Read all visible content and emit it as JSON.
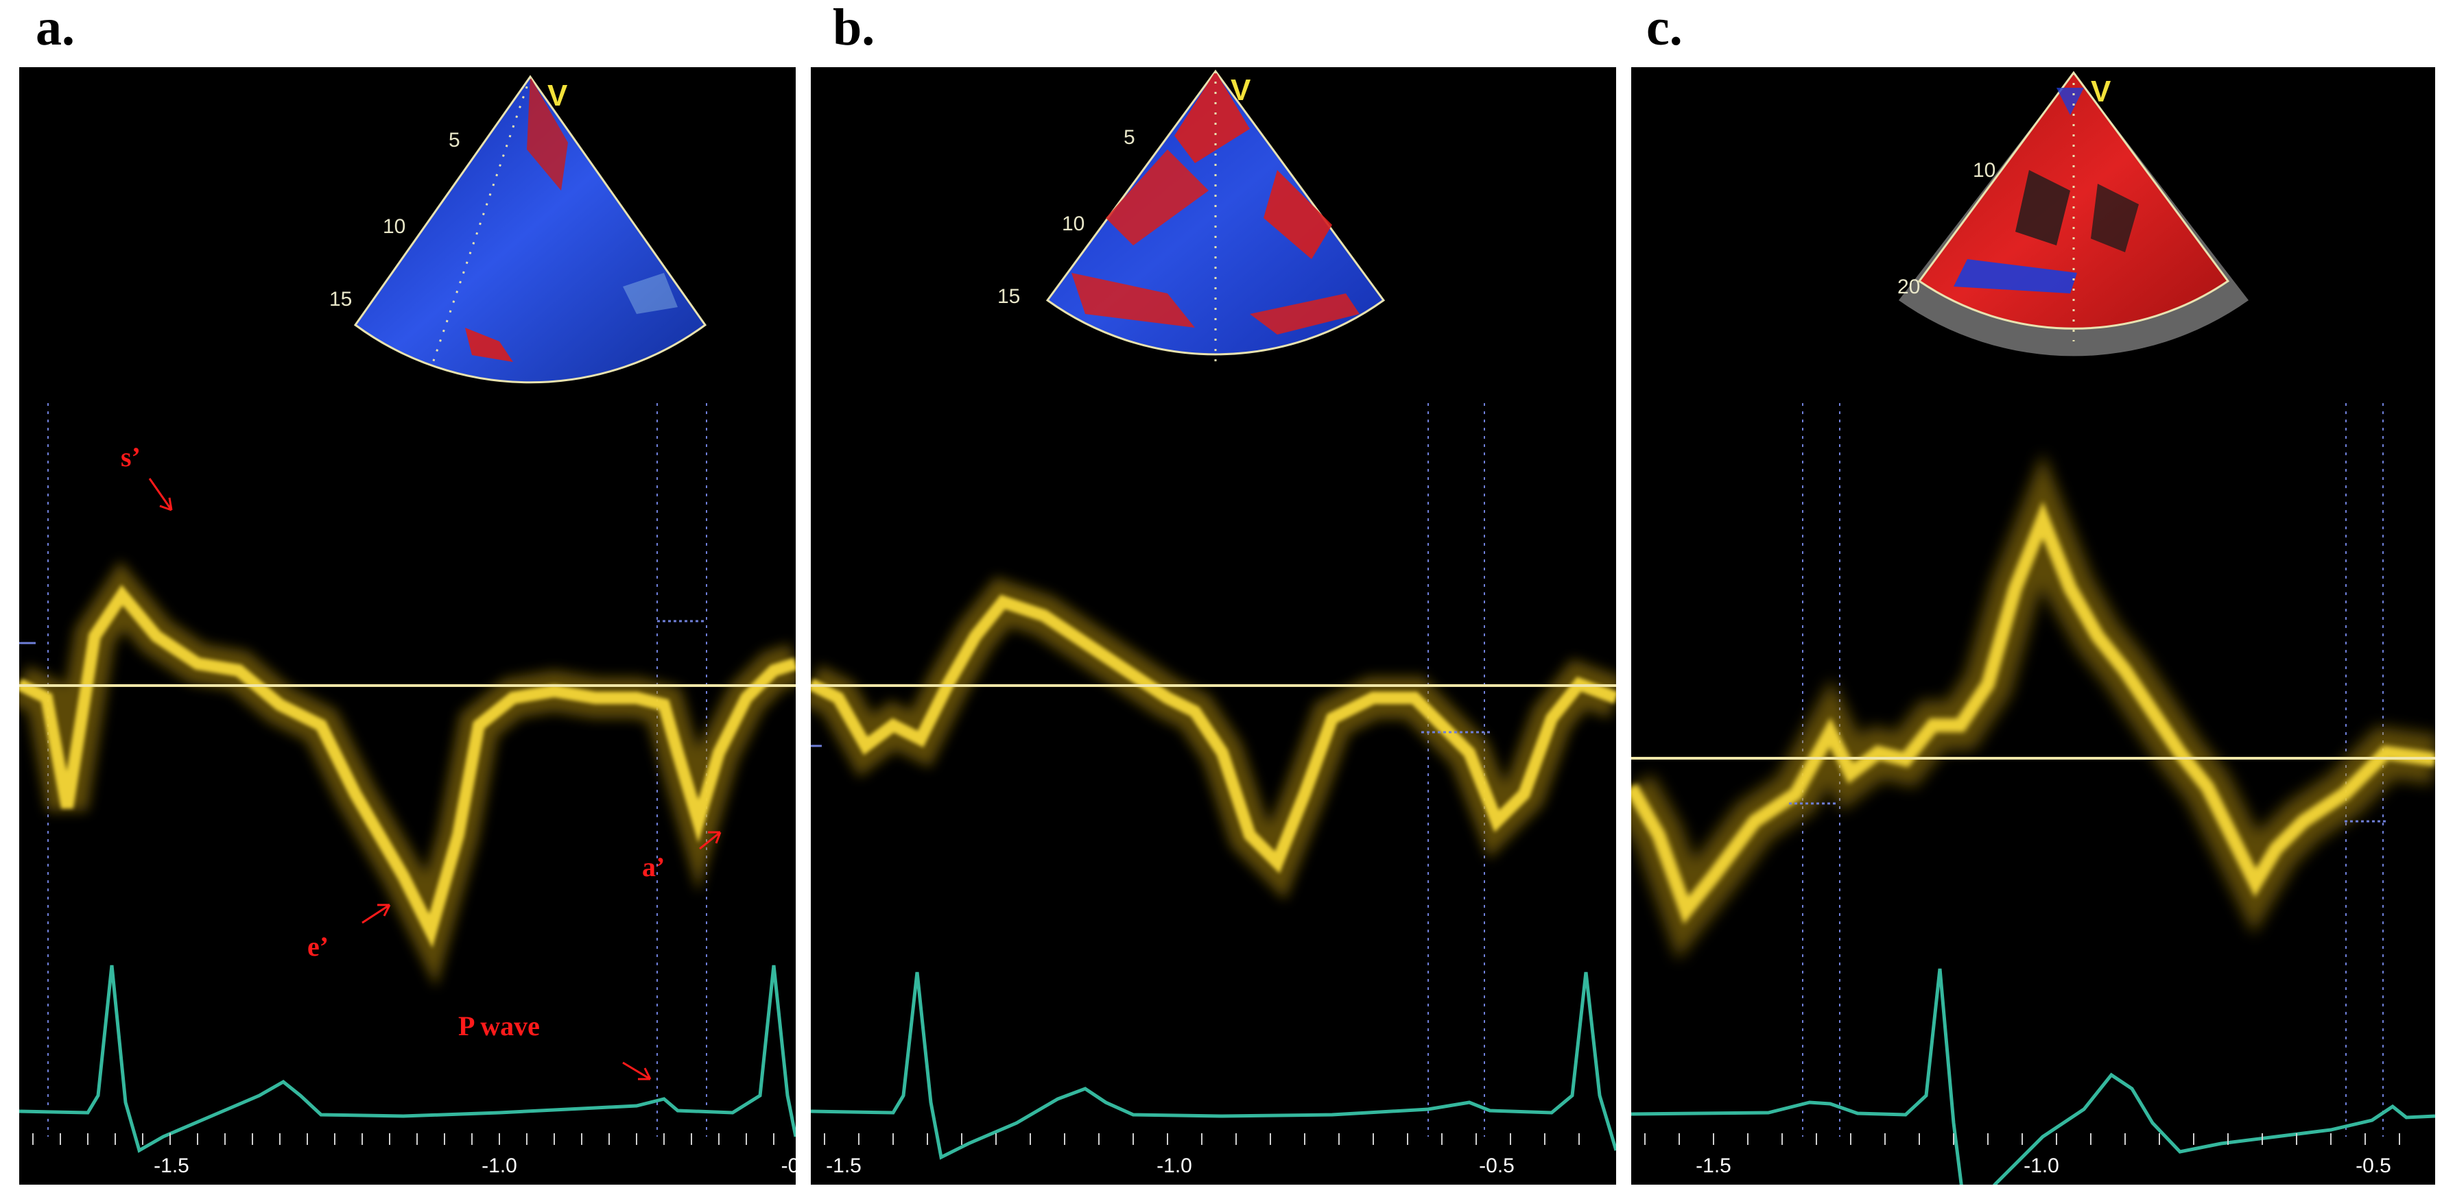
{
  "figure": {
    "panels": [
      {
        "id": "a",
        "label": "a.",
        "sector_v": "V",
        "depth_marks": [
          "5",
          "10",
          "15"
        ],
        "time_ticks": [
          "-1.5",
          "-1.0",
          "-0"
        ],
        "annotations": [
          "s’",
          "e’",
          "a’",
          "P wave"
        ]
      },
      {
        "id": "b",
        "label": "b.",
        "sector_v": "V",
        "depth_marks": [
          "5",
          "10",
          "15"
        ],
        "time_ticks": [
          "-1.5",
          "-1.0",
          "-0.5"
        ],
        "annotations": []
      },
      {
        "id": "c",
        "label": "c.",
        "sector_v": "V",
        "depth_marks": [
          "10",
          "20"
        ],
        "time_ticks": [
          "-1.5",
          "-1.0",
          "-0.5"
        ],
        "annotations": []
      }
    ],
    "colors": {
      "background": "#000000",
      "doppler": "#f2cf2a",
      "ecg": "#35b89e",
      "baseline": "#f0e6a8",
      "marker": "#6f7fd9",
      "annotation": "#ff1a1a",
      "sector_blue": "#1f3cd6",
      "sector_red": "#d61e1e"
    }
  }
}
